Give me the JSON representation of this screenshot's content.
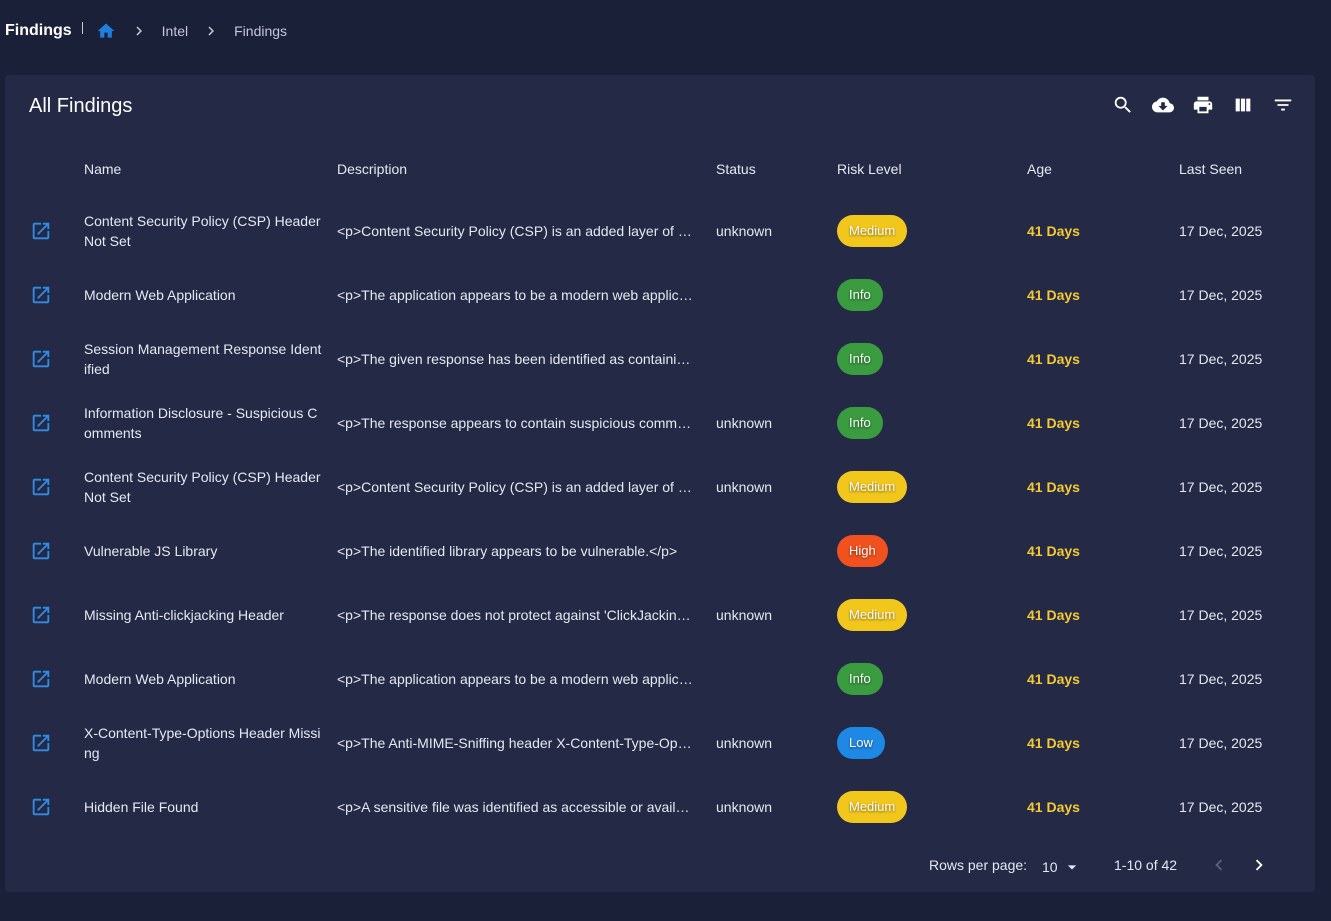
{
  "header": {
    "page_title": "Findings",
    "breadcrumbs": [
      "Intel",
      "Findings"
    ],
    "home_color": "#1f7fe0"
  },
  "panel": {
    "title": "All Findings",
    "toolbar": [
      "search-icon",
      "cloud-download-icon",
      "print-icon",
      "view-columns-icon",
      "filter-list-icon"
    ]
  },
  "table": {
    "columns": [
      "Name",
      "Description",
      "Status",
      "Risk Level",
      "Age",
      "Last Seen"
    ],
    "rows": [
      {
        "name": "Content Security Policy (CSP) Header Not Set",
        "description": "<p>Content Security Policy (CSP) is an added layer of security that helps to detect and mitigate certain types of attacks",
        "status": "unknown",
        "risk": "Medium",
        "age": "41 Days",
        "last_seen": "17 Dec, 2025"
      },
      {
        "name": "Modern Web Application",
        "description": "<p>The application appears to be a modern web application",
        "status": "",
        "risk": "Info",
        "age": "41 Days",
        "last_seen": "17 Dec, 2025"
      },
      {
        "name": "Session Management Response Identified",
        "description": "<p>The given response has been identified as containing a session management token",
        "status": "",
        "risk": "Info",
        "age": "41 Days",
        "last_seen": "17 Dec, 2025"
      },
      {
        "name": "Information Disclosure - Suspicious Comments",
        "description": "<p>The response appears to contain suspicious comments",
        "status": "unknown",
        "risk": "Info",
        "age": "41 Days",
        "last_seen": "17 Dec, 2025"
      },
      {
        "name": "Content Security Policy (CSP) Header Not Set",
        "description": "<p>Content Security Policy (CSP) is an added layer of security that helps to detect and mitigate certain types of attacks",
        "status": "unknown",
        "risk": "Medium",
        "age": "41 Days",
        "last_seen": "17 Dec, 2025"
      },
      {
        "name": "Vulnerable JS Library",
        "description": "<p>The identified library appears to be vulnerable.</p>",
        "status": "",
        "risk": "High",
        "age": "41 Days",
        "last_seen": "17 Dec, 2025"
      },
      {
        "name": "Missing Anti-clickjacking Header",
        "description": "<p>The response does not protect against 'ClickJacking' attacks",
        "status": "unknown",
        "risk": "Medium",
        "age": "41 Days",
        "last_seen": "17 Dec, 2025"
      },
      {
        "name": "Modern Web Application",
        "description": "<p>The application appears to be a modern web application",
        "status": "",
        "risk": "Info",
        "age": "41 Days",
        "last_seen": "17 Dec, 2025"
      },
      {
        "name": "X-Content-Type-Options Header Missing",
        "description": "<p>The Anti-MIME-Sniffing header X-Content-Type-Options was not set",
        "status": "unknown",
        "risk": "Low",
        "age": "41 Days",
        "last_seen": "17 Dec, 2025"
      },
      {
        "name": "Hidden File Found",
        "description": "<p>A sensitive file was identified as accessible or available",
        "status": "unknown",
        "risk": "Medium",
        "age": "41 Days",
        "last_seen": "17 Dec, 2025"
      }
    ]
  },
  "risk_colors": {
    "Medium": "#f2c71c",
    "Info": "#3a9b3f",
    "High": "#f0511e",
    "Low": "#1e88e5"
  },
  "pagination": {
    "rows_per_page_label": "Rows per page:",
    "rows_per_page": "10",
    "range": "1-10 of 42"
  }
}
